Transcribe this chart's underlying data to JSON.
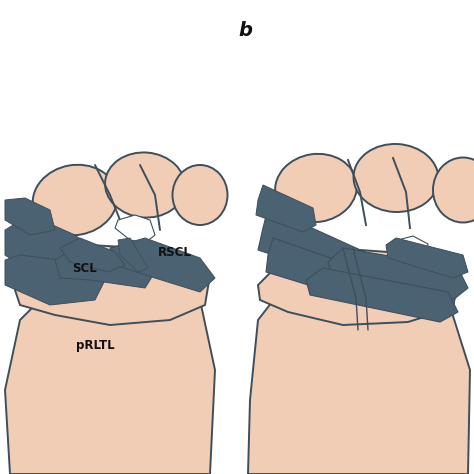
{
  "background_color": "#ffffff",
  "skin_color": "#f2cdb5",
  "skin_outline_color": "#3d4f5c",
  "ligament_color": "#4a6272",
  "white_accent": "#ffffff",
  "label_color": "#111111",
  "label_b": "b",
  "label_SCL": "SCL",
  "label_RSCL": "RSCL",
  "label_pRLTL": "pRLTL",
  "fig_width": 4.74,
  "fig_height": 4.74,
  "dpi": 100
}
